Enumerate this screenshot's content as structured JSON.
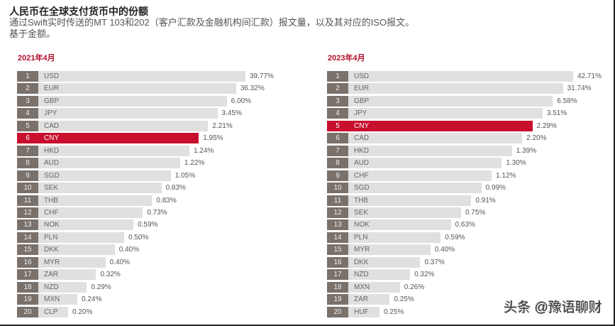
{
  "title": "人民币在全球支付货币中的份额",
  "subtitle_line1": "通过Swift实时传送的MT 103和202（客户汇款及金融机构间汇款）报文量，以及其对应的ISO报文。",
  "subtitle_line2": "基于金额。",
  "watermark": "头条 @豫语聊财",
  "colors": {
    "highlight": "#c8102e",
    "rank_box": "#7a716b",
    "bar": "#e1e0df",
    "period_title": "#b0102a"
  },
  "chart_data": [
    {
      "type": "bar",
      "title": "2021年4月",
      "orientation": "horizontal",
      "highlight": "CNY",
      "unit": "%",
      "ranks": [
        1,
        2,
        3,
        4,
        5,
        6,
        7,
        8,
        9,
        10,
        11,
        12,
        13,
        14,
        15,
        16,
        17,
        18,
        19,
        20
      ],
      "categories": [
        "USD",
        "EUR",
        "GBP",
        "JPY",
        "CAD",
        "CNY",
        "HKD",
        "AUD",
        "SGD",
        "SEK",
        "THB",
        "CHF",
        "NOK",
        "PLN",
        "DKK",
        "MYR",
        "ZAR",
        "NZD",
        "MXN",
        "CLP"
      ],
      "values": [
        39.77,
        36.32,
        6.0,
        3.45,
        2.21,
        1.95,
        1.24,
        1.22,
        1.05,
        0.83,
        0.83,
        0.73,
        0.59,
        0.5,
        0.4,
        0.4,
        0.32,
        0.29,
        0.24,
        0.2
      ],
      "labels": [
        "39.77%",
        "36.32%",
        "6.00%",
        "3.45%",
        "2.21%",
        "1.95%",
        "1.24%",
        "1.22%",
        "1.05%",
        "0.83%",
        "0.83%",
        "0.73%",
        "0.59%",
        "0.50%",
        "0.40%",
        "0.40%",
        "0.32%",
        "0.29%",
        "0.24%",
        "0.20%"
      ]
    },
    {
      "type": "bar",
      "title": "2023年4月",
      "orientation": "horizontal",
      "highlight": "CNY",
      "unit": "%",
      "ranks": [
        1,
        2,
        3,
        4,
        5,
        6,
        7,
        8,
        9,
        10,
        11,
        12,
        13,
        14,
        15,
        16,
        17,
        18,
        19,
        20
      ],
      "categories": [
        "USD",
        "EUR",
        "GBP",
        "JPY",
        "CNY",
        "CAD",
        "HKD",
        "AUD",
        "CHF",
        "SGD",
        "THB",
        "SEK",
        "NOK",
        "PLN",
        "MYR",
        "DKK",
        "NZD",
        "MXN",
        "ZAR",
        "HUF"
      ],
      "values": [
        42.71,
        31.74,
        6.58,
        3.51,
        2.29,
        2.2,
        1.39,
        1.3,
        1.12,
        0.99,
        0.91,
        0.75,
        0.63,
        0.59,
        0.4,
        0.37,
        0.32,
        0.26,
        0.25,
        0.25
      ],
      "labels": [
        "42.71%",
        "31.74%",
        "6.58%",
        "3.51%",
        "2.29%",
        "2.20%",
        "1.39%",
        "1.30%",
        "1.12%",
        "0.99%",
        "0.91%",
        "0.75%",
        "0.63%",
        "0.59%",
        "0.40%",
        "0.37%",
        "0.32%",
        "0.26%",
        "0.25%",
        "0.25%"
      ]
    }
  ]
}
